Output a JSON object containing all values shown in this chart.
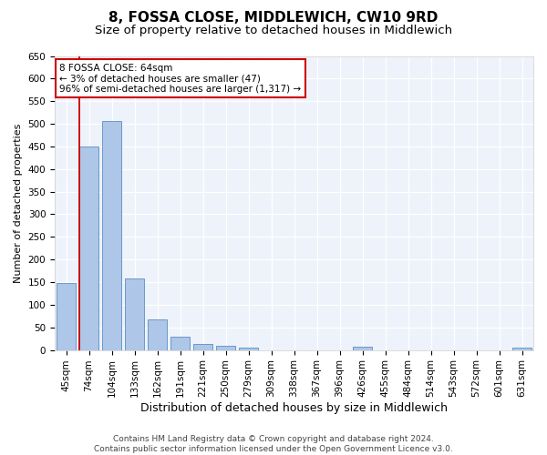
{
  "title": "8, FOSSA CLOSE, MIDDLEWICH, CW10 9RD",
  "subtitle": "Size of property relative to detached houses in Middlewich",
  "xlabel": "Distribution of detached houses by size in Middlewich",
  "ylabel": "Number of detached properties",
  "categories": [
    "45sqm",
    "74sqm",
    "104sqm",
    "133sqm",
    "162sqm",
    "191sqm",
    "221sqm",
    "250sqm",
    "279sqm",
    "309sqm",
    "338sqm",
    "367sqm",
    "396sqm",
    "426sqm",
    "455sqm",
    "484sqm",
    "514sqm",
    "543sqm",
    "572sqm",
    "601sqm",
    "631sqm"
  ],
  "values": [
    148,
    450,
    507,
    158,
    68,
    30,
    14,
    9,
    5,
    0,
    0,
    0,
    0,
    7,
    0,
    0,
    0,
    0,
    0,
    0,
    5
  ],
  "bar_color": "#aec6e8",
  "bar_edge_color": "#5a8fc0",
  "annotation_box_text": "8 FOSSA CLOSE: 64sqm\n← 3% of detached houses are smaller (47)\n96% of semi-detached houses are larger (1,317) →",
  "annotation_box_color": "#ffffff",
  "annotation_box_edge_color": "#cc0000",
  "vline_color": "#cc0000",
  "vline_x": 0.57,
  "ylim": [
    0,
    650
  ],
  "yticks": [
    0,
    50,
    100,
    150,
    200,
    250,
    300,
    350,
    400,
    450,
    500,
    550,
    600,
    650
  ],
  "bg_color": "#eef2fa",
  "fig_bg_color": "#ffffff",
  "footer_text": "Contains HM Land Registry data © Crown copyright and database right 2024.\nContains public sector information licensed under the Open Government Licence v3.0.",
  "title_fontsize": 11,
  "subtitle_fontsize": 9.5,
  "xlabel_fontsize": 9,
  "ylabel_fontsize": 8,
  "tick_fontsize": 7.5,
  "footer_fontsize": 6.5,
  "ann_fontsize": 7.5
}
